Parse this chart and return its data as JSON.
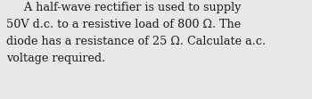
{
  "text_line1": "     A half-wave rectifier is used to supply",
  "text_line2": "50V d.c. to a resistive load of 800 Ω. The",
  "text_line3": "diode has a resistance of 25 Ω. Calculate a.c.",
  "text_line4": "voltage required.",
  "background_color": "#e8e8e8",
  "text_color": "#1a1a1a",
  "font_size": 9.2,
  "font_family": "DejaVu Serif",
  "font_weight": "normal"
}
